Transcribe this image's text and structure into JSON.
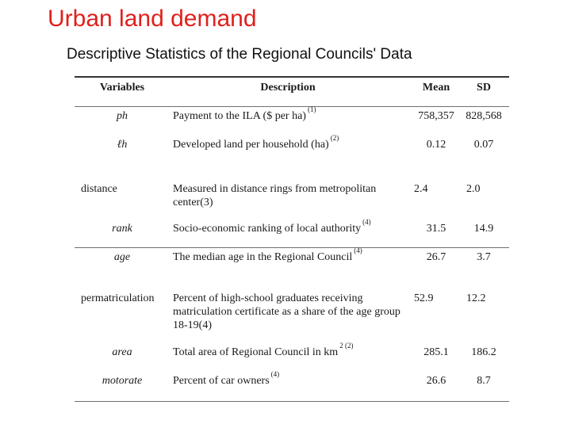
{
  "slide": {
    "title": "Urban land demand",
    "subtitle": "Descriptive Statistics of the Regional Councils' Data"
  },
  "table": {
    "headers": {
      "variables": "Variables",
      "description": "Description",
      "mean": "Mean",
      "sd": "SD"
    },
    "rows": [
      {
        "variable": "ph",
        "description": "Payment to the ILA ($ per ha)",
        "note": "(1)",
        "mean": "758,357",
        "sd": "828,568"
      },
      {
        "variable": "ℓh",
        "description": "Developed land per household (ha)",
        "note": "(2)",
        "mean": "0.12",
        "sd": "0.07"
      },
      {
        "variable": "distance",
        "description": "Measured in distance rings from metropolitan center(3)",
        "note": "",
        "mean": "2.4",
        "sd": "2.0"
      },
      {
        "variable": "rank",
        "description": "Socio-economic ranking of local authority",
        "note": "(4)",
        "mean": "31.5",
        "sd": "14.9"
      },
      {
        "variable": "age",
        "description": "The median age in the Regional Council",
        "note": "(4)",
        "mean": "26.7",
        "sd": "3.7"
      },
      {
        "variable": "permatriculation",
        "description": "Percent of high-school graduates receiving matriculation certificate as a share of the age group 18-19(4)",
        "note": "",
        "mean": "52.9",
        "sd": "12.2"
      },
      {
        "variable": "area",
        "description": "Total area of Regional Council in km",
        "note": "2 (2)",
        "mean": "285.1",
        "sd": "186.2"
      },
      {
        "variable": "motorate",
        "description": "Percent of car owners",
        "note": "(4)",
        "mean": "26.6",
        "sd": "8.7"
      }
    ]
  }
}
